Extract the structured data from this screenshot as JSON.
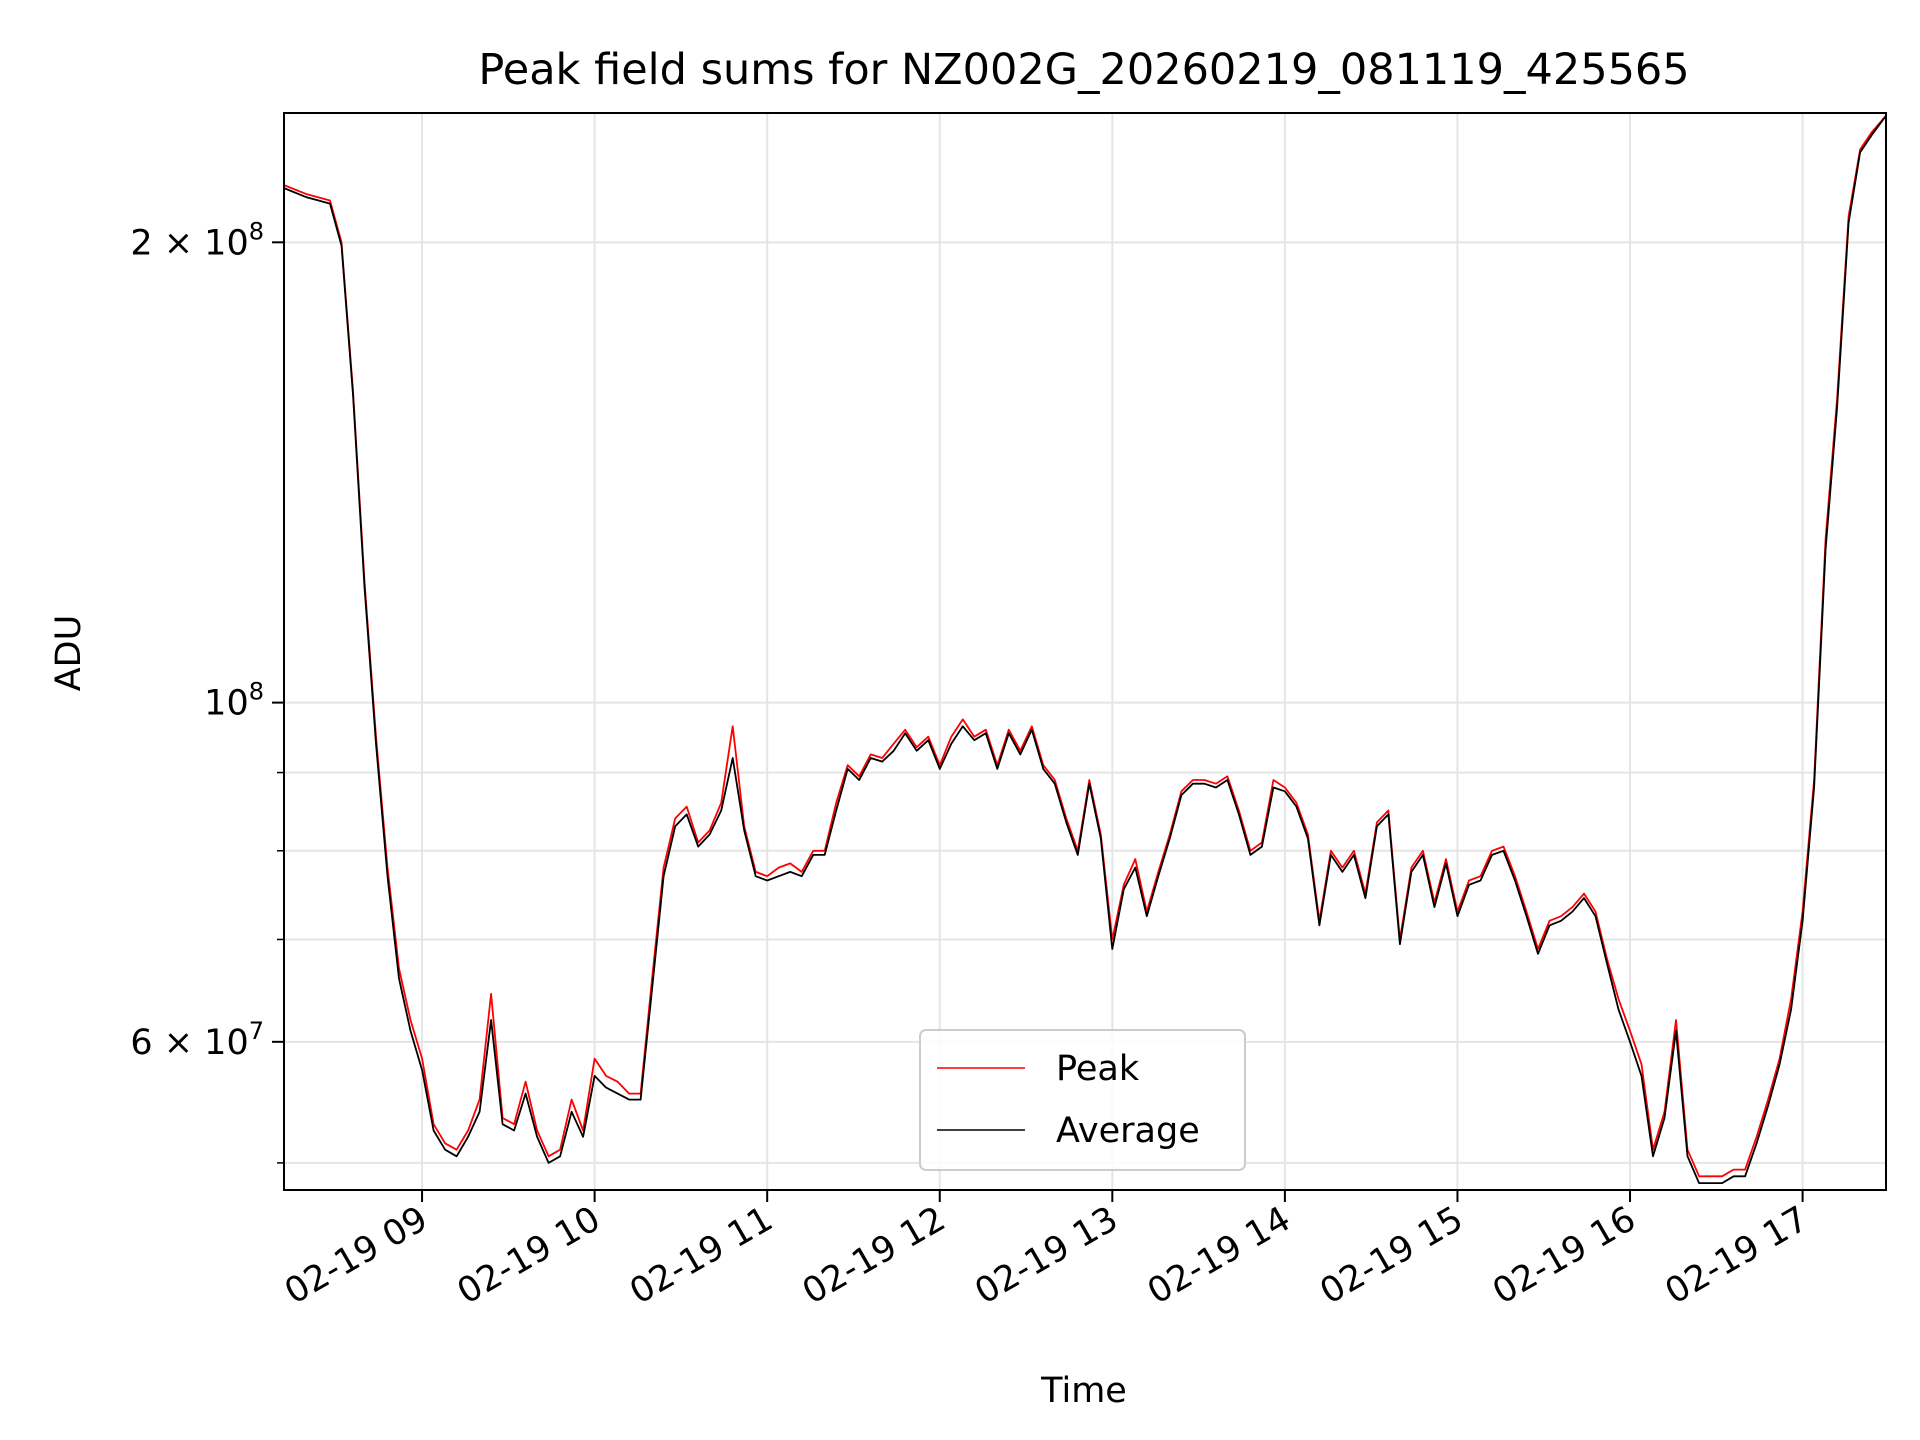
{
  "chart_data": {
    "type": "line",
    "title": "Peak field sums for NZ002G_20260219_081119_425565",
    "xlabel": "Time",
    "ylabel": "ADU",
    "y_scale": "log",
    "x_range": [
      "2026-02-19 08:12",
      "2026-02-19 17:29"
    ],
    "ylim": [
      48000000,
      243000000
    ],
    "x_ticks": [
      "2026-02-19 09:00",
      "2026-02-19 10:00",
      "2026-02-19 11:00",
      "2026-02-19 12:00",
      "2026-02-19 13:00",
      "2026-02-19 14:00",
      "2026-02-19 15:00",
      "2026-02-19 16:00",
      "2026-02-19 17:00"
    ],
    "x_tick_labels": [
      "02-19 09",
      "02-19 10",
      "02-19 11",
      "02-19 12",
      "02-19 13",
      "02-19 14",
      "02-19 15",
      "02-19 16",
      "02-19 17"
    ],
    "y_major_ticks": [
      {
        "value": 60000000,
        "mantissa": "6",
        "exponent": "7"
      },
      {
        "value": 100000000,
        "mantissa": "",
        "exponent": "8"
      },
      {
        "value": 200000000,
        "mantissa": "2",
        "exponent": "8"
      }
    ],
    "y_minor_ticks": [
      50000000,
      70000000,
      80000000,
      90000000
    ],
    "grid": true,
    "legend_position": "bottom-center",
    "series": [
      {
        "name": "Peak",
        "color": "#ff0000",
        "x": [
          "2026-02-19 08:12",
          "2026-02-19 08:20",
          "2026-02-19 08:28",
          "2026-02-19 08:32",
          "2026-02-19 08:36",
          "2026-02-19 08:40",
          "2026-02-19 08:44",
          "2026-02-19 08:48",
          "2026-02-19 08:52",
          "2026-02-19 08:56",
          "2026-02-19 09:00",
          "2026-02-19 09:04",
          "2026-02-19 09:08",
          "2026-02-19 09:12",
          "2026-02-19 09:16",
          "2026-02-19 09:20",
          "2026-02-19 09:24",
          "2026-02-19 09:28",
          "2026-02-19 09:32",
          "2026-02-19 09:36",
          "2026-02-19 09:40",
          "2026-02-19 09:44",
          "2026-02-19 09:48",
          "2026-02-19 09:52",
          "2026-02-19 09:56",
          "2026-02-19 10:00",
          "2026-02-19 10:04",
          "2026-02-19 10:08",
          "2026-02-19 10:12",
          "2026-02-19 10:16",
          "2026-02-19 10:20",
          "2026-02-19 10:24",
          "2026-02-19 10:28",
          "2026-02-19 10:32",
          "2026-02-19 10:36",
          "2026-02-19 10:40",
          "2026-02-19 10:44",
          "2026-02-19 10:48",
          "2026-02-19 10:52",
          "2026-02-19 10:56",
          "2026-02-19 11:00",
          "2026-02-19 11:04",
          "2026-02-19 11:08",
          "2026-02-19 11:12",
          "2026-02-19 11:16",
          "2026-02-19 11:20",
          "2026-02-19 11:24",
          "2026-02-19 11:28",
          "2026-02-19 11:32",
          "2026-02-19 11:36",
          "2026-02-19 11:40",
          "2026-02-19 11:44",
          "2026-02-19 11:48",
          "2026-02-19 11:52",
          "2026-02-19 11:56",
          "2026-02-19 12:00",
          "2026-02-19 12:04",
          "2026-02-19 12:08",
          "2026-02-19 12:12",
          "2026-02-19 12:16",
          "2026-02-19 12:20",
          "2026-02-19 12:24",
          "2026-02-19 12:28",
          "2026-02-19 12:32",
          "2026-02-19 12:36",
          "2026-02-19 12:40",
          "2026-02-19 12:44",
          "2026-02-19 12:48",
          "2026-02-19 12:52",
          "2026-02-19 12:56",
          "2026-02-19 13:00",
          "2026-02-19 13:04",
          "2026-02-19 13:08",
          "2026-02-19 13:12",
          "2026-02-19 13:16",
          "2026-02-19 13:20",
          "2026-02-19 13:24",
          "2026-02-19 13:28",
          "2026-02-19 13:32",
          "2026-02-19 13:36",
          "2026-02-19 13:40",
          "2026-02-19 13:44",
          "2026-02-19 13:48",
          "2026-02-19 13:52",
          "2026-02-19 13:56",
          "2026-02-19 14:00",
          "2026-02-19 14:04",
          "2026-02-19 14:08",
          "2026-02-19 14:12",
          "2026-02-19 14:16",
          "2026-02-19 14:20",
          "2026-02-19 14:24",
          "2026-02-19 14:28",
          "2026-02-19 14:32",
          "2026-02-19 14:36",
          "2026-02-19 14:40",
          "2026-02-19 14:44",
          "2026-02-19 14:48",
          "2026-02-19 14:52",
          "2026-02-19 14:56",
          "2026-02-19 15:00",
          "2026-02-19 15:04",
          "2026-02-19 15:08",
          "2026-02-19 15:12",
          "2026-02-19 15:16",
          "2026-02-19 15:20",
          "2026-02-19 15:24",
          "2026-02-19 15:28",
          "2026-02-19 15:32",
          "2026-02-19 15:36",
          "2026-02-19 15:40",
          "2026-02-19 15:44",
          "2026-02-19 15:48",
          "2026-02-19 15:52",
          "2026-02-19 15:56",
          "2026-02-19 16:00",
          "2026-02-19 16:04",
          "2026-02-19 16:08",
          "2026-02-19 16:12",
          "2026-02-19 16:16",
          "2026-02-19 16:20",
          "2026-02-19 16:24",
          "2026-02-19 16:28",
          "2026-02-19 16:32",
          "2026-02-19 16:36",
          "2026-02-19 16:40",
          "2026-02-19 16:44",
          "2026-02-19 16:48",
          "2026-02-19 16:52",
          "2026-02-19 16:56",
          "2026-02-19 17:00",
          "2026-02-19 17:04",
          "2026-02-19 17:08",
          "2026-02-19 17:12",
          "2026-02-19 17:16",
          "2026-02-19 17:20",
          "2026-02-19 17:24",
          "2026-02-19 17:29"
        ],
        "values": [
          218000000,
          215000000,
          213000000,
          200000000,
          160000000,
          120000000,
          95000000,
          78000000,
          67000000,
          62000000,
          58500000,
          53000000,
          51500000,
          51000000,
          52500000,
          55000000,
          64500000,
          53500000,
          53000000,
          56500000,
          52500000,
          50500000,
          51000000,
          55000000,
          52500000,
          58500000,
          57000000,
          56500000,
          55500000,
          55500000,
          66000000,
          78000000,
          84000000,
          85500000,
          81000000,
          82500000,
          86000000,
          96500000,
          83000000,
          77500000,
          77000000,
          78000000,
          78500000,
          77500000,
          80000000,
          80000000,
          86000000,
          91000000,
          89500000,
          92500000,
          92000000,
          94000000,
          96000000,
          93500000,
          95000000,
          91000000,
          95000000,
          97500000,
          95000000,
          96000000,
          91000000,
          96000000,
          93000000,
          96500000,
          91000000,
          89000000,
          84000000,
          80000000,
          89000000,
          82000000,
          70000000,
          76000000,
          79000000,
          73000000,
          77500000,
          82000000,
          87500000,
          89000000,
          89000000,
          88500000,
          89500000,
          85000000,
          80000000,
          81000000,
          89000000,
          88000000,
          86000000,
          82000000,
          72000000,
          80000000,
          78000000,
          80000000,
          75000000,
          83500000,
          85000000,
          70000000,
          78000000,
          80000000,
          74000000,
          79000000,
          73000000,
          76500000,
          77000000,
          80000000,
          80500000,
          77000000,
          73000000,
          69000000,
          72000000,
          72500000,
          73500000,
          75000000,
          73000000,
          68000000,
          64000000,
          61000000,
          58000000,
          51000000,
          54000000,
          62000000,
          51000000,
          49000000,
          49000000,
          49000000,
          49500000,
          49500000,
          52000000,
          55000000,
          58500000,
          64000000,
          73000000,
          89000000,
          128000000,
          158000000,
          208000000,
          230000000,
          236000000,
          242000000
        ]
      },
      {
        "name": "Average",
        "color": "#000000",
        "x": [
          "2026-02-19 08:12",
          "2026-02-19 08:20",
          "2026-02-19 08:28",
          "2026-02-19 08:32",
          "2026-02-19 08:36",
          "2026-02-19 08:40",
          "2026-02-19 08:44",
          "2026-02-19 08:48",
          "2026-02-19 08:52",
          "2026-02-19 08:56",
          "2026-02-19 09:00",
          "2026-02-19 09:04",
          "2026-02-19 09:08",
          "2026-02-19 09:12",
          "2026-02-19 09:16",
          "2026-02-19 09:20",
          "2026-02-19 09:24",
          "2026-02-19 09:28",
          "2026-02-19 09:32",
          "2026-02-19 09:36",
          "2026-02-19 09:40",
          "2026-02-19 09:44",
          "2026-02-19 09:48",
          "2026-02-19 09:52",
          "2026-02-19 09:56",
          "2026-02-19 10:00",
          "2026-02-19 10:04",
          "2026-02-19 10:08",
          "2026-02-19 10:12",
          "2026-02-19 10:16",
          "2026-02-19 10:20",
          "2026-02-19 10:24",
          "2026-02-19 10:28",
          "2026-02-19 10:32",
          "2026-02-19 10:36",
          "2026-02-19 10:40",
          "2026-02-19 10:44",
          "2026-02-19 10:48",
          "2026-02-19 10:52",
          "2026-02-19 10:56",
          "2026-02-19 11:00",
          "2026-02-19 11:04",
          "2026-02-19 11:08",
          "2026-02-19 11:12",
          "2026-02-19 11:16",
          "2026-02-19 11:20",
          "2026-02-19 11:24",
          "2026-02-19 11:28",
          "2026-02-19 11:32",
          "2026-02-19 11:36",
          "2026-02-19 11:40",
          "2026-02-19 11:44",
          "2026-02-19 11:48",
          "2026-02-19 11:52",
          "2026-02-19 11:56",
          "2026-02-19 12:00",
          "2026-02-19 12:04",
          "2026-02-19 12:08",
          "2026-02-19 12:12",
          "2026-02-19 12:16",
          "2026-02-19 12:20",
          "2026-02-19 12:24",
          "2026-02-19 12:28",
          "2026-02-19 12:32",
          "2026-02-19 12:36",
          "2026-02-19 12:40",
          "2026-02-19 12:44",
          "2026-02-19 12:48",
          "2026-02-19 12:52",
          "2026-02-19 12:56",
          "2026-02-19 13:00",
          "2026-02-19 13:04",
          "2026-02-19 13:08",
          "2026-02-19 13:12",
          "2026-02-19 13:16",
          "2026-02-19 13:20",
          "2026-02-19 13:24",
          "2026-02-19 13:28",
          "2026-02-19 13:32",
          "2026-02-19 13:36",
          "2026-02-19 13:40",
          "2026-02-19 13:44",
          "2026-02-19 13:48",
          "2026-02-19 13:52",
          "2026-02-19 13:56",
          "2026-02-19 14:00",
          "2026-02-19 14:04",
          "2026-02-19 14:08",
          "2026-02-19 14:12",
          "2026-02-19 14:16",
          "2026-02-19 14:20",
          "2026-02-19 14:24",
          "2026-02-19 14:28",
          "2026-02-19 14:32",
          "2026-02-19 14:36",
          "2026-02-19 14:40",
          "2026-02-19 14:44",
          "2026-02-19 14:48",
          "2026-02-19 14:52",
          "2026-02-19 14:56",
          "2026-02-19 15:00",
          "2026-02-19 15:04",
          "2026-02-19 15:08",
          "2026-02-19 15:12",
          "2026-02-19 15:16",
          "2026-02-19 15:20",
          "2026-02-19 15:24",
          "2026-02-19 15:28",
          "2026-02-19 15:32",
          "2026-02-19 15:36",
          "2026-02-19 15:40",
          "2026-02-19 15:44",
          "2026-02-19 15:48",
          "2026-02-19 15:52",
          "2026-02-19 15:56",
          "2026-02-19 16:00",
          "2026-02-19 16:04",
          "2026-02-19 16:08",
          "2026-02-19 16:12",
          "2026-02-19 16:16",
          "2026-02-19 16:20",
          "2026-02-19 16:24",
          "2026-02-19 16:28",
          "2026-02-19 16:32",
          "2026-02-19 16:36",
          "2026-02-19 16:40",
          "2026-02-19 16:44",
          "2026-02-19 16:48",
          "2026-02-19 16:52",
          "2026-02-19 16:56",
          "2026-02-19 17:00",
          "2026-02-19 17:04",
          "2026-02-19 17:08",
          "2026-02-19 17:12",
          "2026-02-19 17:16",
          "2026-02-19 17:20",
          "2026-02-19 17:24",
          "2026-02-19 17:29"
        ],
        "values": [
          217000000,
          214000000,
          212000000,
          199000000,
          159000000,
          119000000,
          94000000,
          77000000,
          66000000,
          61000000,
          57500000,
          52500000,
          51000000,
          50500000,
          52000000,
          54000000,
          62000000,
          53000000,
          52500000,
          55500000,
          52000000,
          50000000,
          50500000,
          54000000,
          52000000,
          57000000,
          56000000,
          55500000,
          55000000,
          55000000,
          65000000,
          77000000,
          83000000,
          84500000,
          80500000,
          82000000,
          85000000,
          92000000,
          82500000,
          77000000,
          76500000,
          77000000,
          77500000,
          77000000,
          79500000,
          79500000,
          85000000,
          90500000,
          89000000,
          92000000,
          91500000,
          93000000,
          95500000,
          93000000,
          94500000,
          90500000,
          94000000,
          96500000,
          94500000,
          95500000,
          90500000,
          95500000,
          92500000,
          96000000,
          90500000,
          88500000,
          83500000,
          79500000,
          88500000,
          81500000,
          69000000,
          75500000,
          78000000,
          72500000,
          77000000,
          81500000,
          87000000,
          88500000,
          88500000,
          88000000,
          89000000,
          84500000,
          79500000,
          80500000,
          88000000,
          87500000,
          85500000,
          81500000,
          71500000,
          79500000,
          77500000,
          79500000,
          74500000,
          83000000,
          84500000,
          69500000,
          77500000,
          79500000,
          73500000,
          78500000,
          72500000,
          76000000,
          76500000,
          79500000,
          80000000,
          76500000,
          72500000,
          68500000,
          71500000,
          72000000,
          73000000,
          74500000,
          72500000,
          67500000,
          63000000,
          60000000,
          57000000,
          50500000,
          53500000,
          61000000,
          50500000,
          48500000,
          48500000,
          48500000,
          49000000,
          49000000,
          51500000,
          54500000,
          58000000,
          63000000,
          72000000,
          88000000,
          126000000,
          156000000,
          206000000,
          229000000,
          235000000,
          242000000
        ]
      }
    ]
  }
}
